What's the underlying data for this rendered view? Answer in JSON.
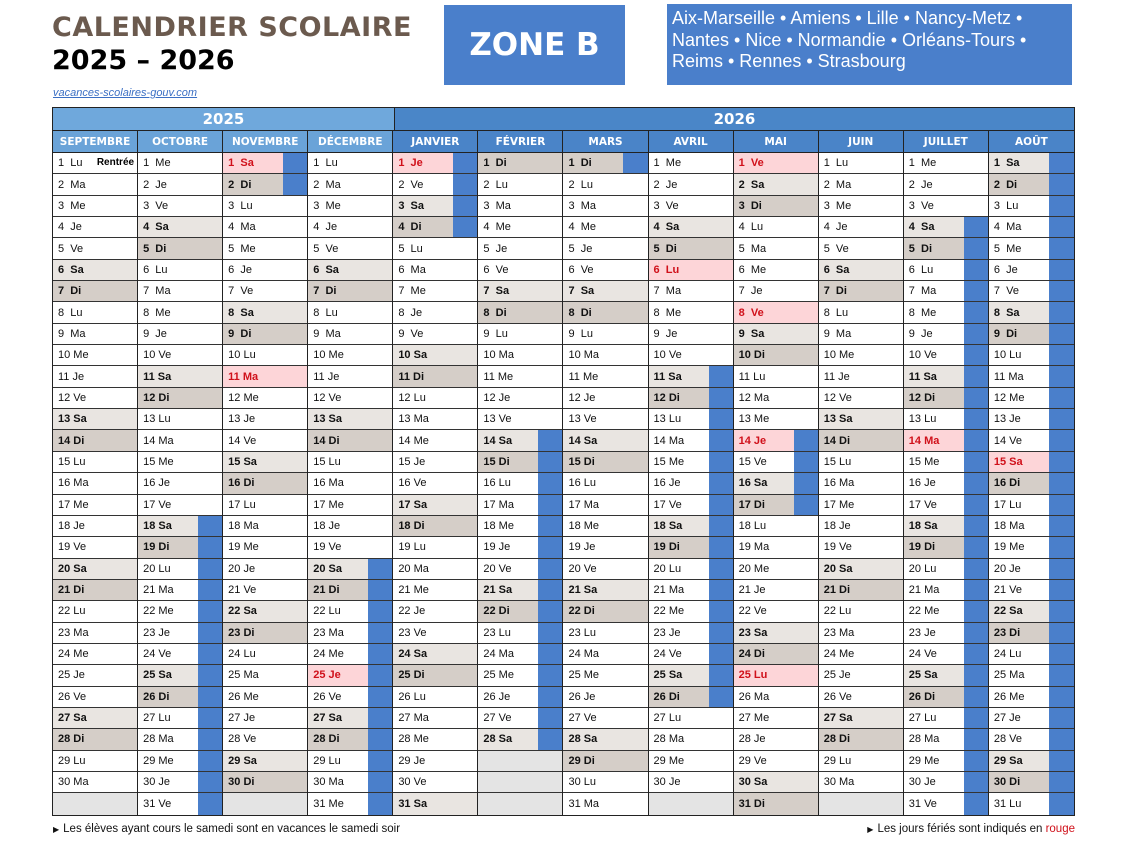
{
  "header": {
    "title": "CALENDRIER SCOLAIRE",
    "years": "2025 – 2026",
    "link": "vacances-scolaires-gouv.com",
    "zone": "ZONE B",
    "regions": "Aix-Marseille • Amiens • Lille • Nancy-Metz • Nantes • Nice • Normandie • Orléans-Tours • Reims • Rennes • Strasbourg"
  },
  "year_labels": [
    "2025",
    "2026"
  ],
  "colors": {
    "vacation": "#4a7fcb",
    "holiday_bg": "#fdd5d8",
    "holiday_text": "#d0101a",
    "saturday": "#e9e5e1",
    "sunday": "#d5cec8"
  },
  "rentree_label": "Rentrée",
  "months": [
    {
      "name": "SEPTEMBRE",
      "year": "2025",
      "holidays": [],
      "vacations": [],
      "days": [
        "1 Lu",
        "2 Ma",
        "3 Me",
        "4 Je",
        "5 Ve",
        "6 Sa",
        "7 Di",
        "8 Lu",
        "9 Ma",
        "10 Me",
        "11 Je",
        "12 Ve",
        "13 Sa",
        "14 Di",
        "15 Lu",
        "16 Ma",
        "17 Me",
        "18 Je",
        "19 Ve",
        "20 Sa",
        "21 Di",
        "22 Lu",
        "23 Ma",
        "24 Me",
        "25 Je",
        "26 Ve",
        "27 Sa",
        "28 Di",
        "29 Lu",
        "30 Ma"
      ]
    },
    {
      "name": "OCTOBRE",
      "year": "2025",
      "holidays": [],
      "vacations": [
        [
          18,
          31
        ]
      ],
      "days": [
        "1 Me",
        "2 Je",
        "3 Ve",
        "4 Sa",
        "5 Di",
        "6 Lu",
        "7 Ma",
        "8 Me",
        "9 Je",
        "10 Ve",
        "11 Sa",
        "12 Di",
        "13 Lu",
        "14 Ma",
        "15 Me",
        "16 Je",
        "17 Ve",
        "18 Sa",
        "19 Di",
        "20 Lu",
        "21 Ma",
        "22 Me",
        "23 Je",
        "24 Ve",
        "25 Sa",
        "26 Di",
        "27 Lu",
        "28 Ma",
        "29 Me",
        "30 Je",
        "31 Ve"
      ]
    },
    {
      "name": "NOVEMBRE",
      "year": "2025",
      "holidays": [
        1,
        11
      ],
      "vacations": [
        [
          1,
          2
        ]
      ],
      "days": [
        "1 Sa",
        "2 Di",
        "3 Lu",
        "4 Ma",
        "5 Me",
        "6 Je",
        "7 Ve",
        "8 Sa",
        "9 Di",
        "10 Lu",
        "11 Ma",
        "12 Me",
        "13 Je",
        "14 Ve",
        "15 Sa",
        "16 Di",
        "17 Lu",
        "18 Ma",
        "19 Me",
        "20 Je",
        "21 Ve",
        "22 Sa",
        "23 Di",
        "24 Lu",
        "25 Ma",
        "26 Me",
        "27 Je",
        "28 Ve",
        "29 Sa",
        "30 Di"
      ]
    },
    {
      "name": "DÉCEMBRE",
      "year": "2025",
      "holidays": [
        25
      ],
      "vacations": [
        [
          20,
          31
        ]
      ],
      "days": [
        "1 Lu",
        "2 Ma",
        "3 Me",
        "4 Je",
        "5 Ve",
        "6 Sa",
        "7 Di",
        "8 Lu",
        "9 Ma",
        "10 Me",
        "11 Je",
        "12 Ve",
        "13 Sa",
        "14 Di",
        "15 Lu",
        "16 Ma",
        "17 Me",
        "18 Je",
        "19 Ve",
        "20 Sa",
        "21 Di",
        "22 Lu",
        "23 Ma",
        "24 Me",
        "25 Je",
        "26 Ve",
        "27 Sa",
        "28 Di",
        "29 Lu",
        "30 Ma",
        "31 Me"
      ]
    },
    {
      "name": "JANVIER",
      "year": "2026",
      "holidays": [
        1
      ],
      "vacations": [
        [
          1,
          4
        ]
      ],
      "days": [
        "1 Je",
        "2 Ve",
        "3 Sa",
        "4 Di",
        "5 Lu",
        "6 Ma",
        "7 Me",
        "8 Je",
        "9 Ve",
        "10 Sa",
        "11 Di",
        "12 Lu",
        "13 Ma",
        "14 Me",
        "15 Je",
        "16 Ve",
        "17 Sa",
        "18 Di",
        "19 Lu",
        "20 Ma",
        "21 Me",
        "22 Je",
        "23 Ve",
        "24 Sa",
        "25 Di",
        "26 Lu",
        "27 Ma",
        "28 Me",
        "29 Je",
        "30 Ve",
        "31 Sa"
      ]
    },
    {
      "name": "FÉVRIER",
      "year": "2026",
      "holidays": [],
      "vacations": [
        [
          14,
          28
        ]
      ],
      "days": [
        "1 Di",
        "2 Lu",
        "3 Ma",
        "4 Me",
        "5 Je",
        "6 Ve",
        "7 Sa",
        "8 Di",
        "9 Lu",
        "10 Ma",
        "11 Me",
        "12 Je",
        "13 Ve",
        "14 Sa",
        "15 Di",
        "16 Lu",
        "17 Ma",
        "18 Me",
        "19 Je",
        "20 Ve",
        "21 Sa",
        "22 Di",
        "23 Lu",
        "24 Ma",
        "25 Me",
        "26 Je",
        "27 Ve",
        "28 Sa"
      ]
    },
    {
      "name": "MARS",
      "year": "2026",
      "holidays": [],
      "vacations": [
        [
          1,
          1
        ]
      ],
      "days": [
        "1 Di",
        "2 Lu",
        "3 Ma",
        "4 Me",
        "5 Je",
        "6 Ve",
        "7 Sa",
        "8 Di",
        "9 Lu",
        "10 Ma",
        "11 Me",
        "12 Je",
        "13 Ve",
        "14 Sa",
        "15 Di",
        "16 Lu",
        "17 Ma",
        "18 Me",
        "19 Je",
        "20 Ve",
        "21 Sa",
        "22 Di",
        "23 Lu",
        "24 Ma",
        "25 Me",
        "26 Je",
        "27 Ve",
        "28 Sa",
        "29 Di",
        "30 Lu",
        "31 Ma"
      ]
    },
    {
      "name": "AVRIL",
      "year": "2026",
      "holidays": [
        6
      ],
      "vacations": [
        [
          11,
          26
        ]
      ],
      "days": [
        "1 Me",
        "2 Je",
        "3 Ve",
        "4 Sa",
        "5 Di",
        "6 Lu",
        "7 Ma",
        "8 Me",
        "9 Je",
        "10 Ve",
        "11 Sa",
        "12 Di",
        "13 Lu",
        "14 Ma",
        "15 Me",
        "16 Je",
        "17 Ve",
        "18 Sa",
        "19 Di",
        "20 Lu",
        "21 Ma",
        "22 Me",
        "23 Je",
        "24 Ve",
        "25 Sa",
        "26 Di",
        "27 Lu",
        "28 Ma",
        "29 Me",
        "30 Je"
      ]
    },
    {
      "name": "MAI",
      "year": "2026",
      "holidays": [
        1,
        8,
        14,
        25
      ],
      "vacations": [
        [
          14,
          17
        ]
      ],
      "days": [
        "1 Ve",
        "2 Sa",
        "3 Di",
        "4 Lu",
        "5 Ma",
        "6 Me",
        "7 Je",
        "8 Ve",
        "9 Sa",
        "10 Di",
        "11 Lu",
        "12 Ma",
        "13 Me",
        "14 Je",
        "15 Ve",
        "16 Sa",
        "17 Di",
        "18 Lu",
        "19 Ma",
        "20 Me",
        "21 Je",
        "22 Ve",
        "23 Sa",
        "24 Di",
        "25 Lu",
        "26 Ma",
        "27 Me",
        "28 Je",
        "29 Ve",
        "30 Sa",
        "31 Di"
      ]
    },
    {
      "name": "JUIN",
      "year": "2026",
      "holidays": [],
      "vacations": [],
      "days": [
        "1 Lu",
        "2 Ma",
        "3 Me",
        "4 Je",
        "5 Ve",
        "6 Sa",
        "7 Di",
        "8 Lu",
        "9 Ma",
        "10 Me",
        "11 Je",
        "12 Ve",
        "13 Sa",
        "14 Di",
        "15 Lu",
        "16 Ma",
        "17 Me",
        "18 Je",
        "19 Ve",
        "20 Sa",
        "21 Di",
        "22 Lu",
        "23 Ma",
        "24 Me",
        "25 Je",
        "26 Ve",
        "27 Sa",
        "28 Di",
        "29 Lu",
        "30 Ma"
      ]
    },
    {
      "name": "JUILLET",
      "year": "2026",
      "holidays": [
        14
      ],
      "vacations": [
        [
          4,
          31
        ]
      ],
      "days": [
        "1 Me",
        "2 Je",
        "3 Ve",
        "4 Sa",
        "5 Di",
        "6 Lu",
        "7 Ma",
        "8 Me",
        "9 Je",
        "10 Ve",
        "11 Sa",
        "12 Di",
        "13 Lu",
        "14 Ma",
        "15 Me",
        "16 Je",
        "17 Ve",
        "18 Sa",
        "19 Di",
        "20 Lu",
        "21 Ma",
        "22 Me",
        "23 Je",
        "24 Ve",
        "25 Sa",
        "26 Di",
        "27 Lu",
        "28 Ma",
        "29 Me",
        "30 Je",
        "31 Ve"
      ]
    },
    {
      "name": "AOÛT",
      "year": "2026",
      "holidays": [
        15
      ],
      "vacations": [
        [
          1,
          31
        ]
      ],
      "days": [
        "1 Sa",
        "2 Di",
        "3 Lu",
        "4 Ma",
        "5 Me",
        "6 Je",
        "7 Ve",
        "8 Sa",
        "9 Di",
        "10 Lu",
        "11 Ma",
        "12 Me",
        "13 Je",
        "14 Ve",
        "15 Sa",
        "16 Di",
        "17 Lu",
        "18 Ma",
        "19 Me",
        "20 Je",
        "21 Ve",
        "22 Sa",
        "23 Di",
        "24 Lu",
        "25 Ma",
        "26 Me",
        "27 Je",
        "28 Ve",
        "29 Sa",
        "30 Di",
        "31 Lu"
      ]
    }
  ],
  "footer": {
    "left": "Les élèves ayant cours le samedi sont en vacances le samedi soir",
    "right_prefix": "Les jours fériés sont indiqués en ",
    "right_red": "rouge"
  }
}
